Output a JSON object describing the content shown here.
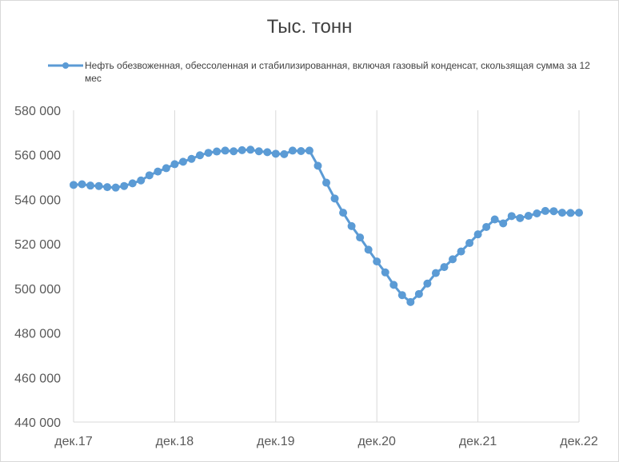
{
  "chart_data": {
    "type": "line",
    "title": "Тыс. тонн",
    "xlabel": "",
    "ylabel": "",
    "ylim": [
      440000,
      580000
    ],
    "ytick_labels": [
      "580 000",
      "560 000",
      "540 000",
      "520 000",
      "500 000",
      "480 000",
      "460 000",
      "440 000"
    ],
    "ytick_values": [
      580000,
      560000,
      540000,
      520000,
      500000,
      480000,
      460000,
      440000
    ],
    "xtick_labels": [
      "дек.17",
      "дек.18",
      "дек.19",
      "дек.20",
      "дек.21",
      "дек.22"
    ],
    "grid": "vertical",
    "legend_position": "top",
    "line_color": "#5b9bd5",
    "series": [
      {
        "name": "Нефть обезвоженная,  обессоленная  и стабилизированная,  включая газовый конденсат,  скользящая сумма  за 12 мес",
        "values": [
          546500,
          546800,
          546200,
          546000,
          545500,
          545300,
          546000,
          547200,
          548500,
          550800,
          552500,
          554000,
          555800,
          556900,
          558200,
          559800,
          560900,
          561500,
          561900,
          561600,
          562100,
          562300,
          561600,
          561200,
          560500,
          560300,
          561900,
          561700,
          561900,
          555100,
          547500,
          540400,
          534000,
          528000,
          522900,
          517400,
          512100,
          507200,
          501600,
          497000,
          493900,
          497500,
          502200,
          506900,
          509600,
          513100,
          516600,
          520400,
          524300,
          527600,
          531000,
          529200,
          532500,
          531600,
          532600,
          533700,
          534800,
          534700,
          534000,
          533900,
          534000
        ]
      }
    ]
  }
}
